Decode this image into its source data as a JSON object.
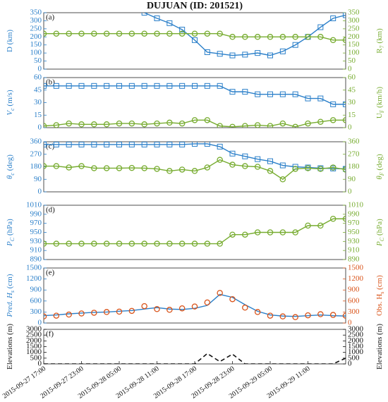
{
  "chart_data": [
    {
      "type": "line",
      "panel": "(a)",
      "ylabel": [
        "D (km)"
      ],
      "y2label": [
        "R",
        "7",
        " (km)"
      ],
      "ylim": [
        0,
        350
      ],
      "yticks": [
        0,
        50,
        100,
        150,
        200,
        250,
        300,
        350
      ],
      "y2lim": [
        0,
        350
      ],
      "y2ticks": [
        0,
        50,
        100,
        150,
        200,
        250,
        300,
        350
      ],
      "ycolor": "#2a7fc9",
      "y2color": "#77ac30",
      "series": [
        {
          "color": "#2a7fc9",
          "marker": "square",
          "line": true,
          "axis": "y",
          "values": [
            null,
            null,
            null,
            null,
            null,
            null,
            null,
            null,
            350,
            315,
            285,
            245,
            180,
            105,
            95,
            85,
            90,
            100,
            85,
            110,
            150,
            200,
            260,
            315,
            335
          ]
        },
        {
          "color": "#77ac30",
          "marker": "circle",
          "line": true,
          "axis": "y2",
          "values": [
            220,
            220,
            220,
            220,
            220,
            220,
            220,
            220,
            220,
            220,
            220,
            220,
            220,
            220,
            220,
            200,
            200,
            200,
            200,
            200,
            200,
            200,
            200,
            180,
            180
          ]
        }
      ]
    },
    {
      "type": "line",
      "panel": "(b)",
      "ylabel": [
        "V",
        "c",
        " (m/s)"
      ],
      "y2label": [
        "U",
        "F",
        " (km/h)"
      ],
      "ylim": [
        0,
        60
      ],
      "yticks": [
        0,
        15,
        30,
        45,
        60
      ],
      "y2lim": [
        0,
        60
      ],
      "y2ticks": [
        0,
        15,
        30,
        45,
        60
      ],
      "ycolor": "#2a7fc9",
      "y2color": "#77ac30",
      "series": [
        {
          "color": "#2a7fc9",
          "marker": "square",
          "line": true,
          "axis": "y",
          "values": [
            50,
            50,
            50,
            50,
            50,
            50,
            50,
            50,
            50,
            50,
            50,
            50,
            50,
            50,
            50,
            43,
            43,
            40,
            40,
            40,
            40,
            35,
            35,
            28,
            28
          ]
        },
        {
          "color": "#77ac30",
          "marker": "circle",
          "line": true,
          "axis": "y2",
          "values": [
            2,
            3,
            5,
            4,
            4,
            4,
            5,
            5,
            4,
            5,
            6,
            5,
            9,
            9,
            2,
            1,
            2,
            3,
            2,
            5,
            1,
            5,
            7,
            9,
            9
          ]
        }
      ]
    },
    {
      "type": "line",
      "panel": "(c)",
      "ylabel": [
        "θ",
        "c",
        " (deg)"
      ],
      "y2label": [
        "θ",
        "F",
        " (deg)"
      ],
      "ylim": [
        0,
        360
      ],
      "yticks": [
        0,
        90,
        180,
        270,
        360
      ],
      "y2lim": [
        0,
        360
      ],
      "y2ticks": [
        0,
        90,
        180,
        270,
        360
      ],
      "ycolor": "#2a7fc9",
      "y2color": "#77ac30",
      "series": [
        {
          "color": "#2a7fc9",
          "marker": "square",
          "line": true,
          "axis": "y",
          "values": [
            340,
            340,
            340,
            340,
            340,
            340,
            340,
            340,
            340,
            340,
            340,
            340,
            345,
            345,
            325,
            275,
            255,
            235,
            220,
            190,
            180,
            175,
            170,
            168,
            165
          ]
        },
        {
          "color": "#77ac30",
          "marker": "circle",
          "line": true,
          "axis": "y2",
          "values": [
            185,
            185,
            175,
            185,
            170,
            170,
            170,
            172,
            170,
            165,
            150,
            160,
            150,
            175,
            230,
            195,
            185,
            180,
            150,
            90,
            165,
            170,
            165,
            175,
            160
          ]
        }
      ]
    },
    {
      "type": "line",
      "panel": "(d)",
      "ylabel": [
        "P",
        "C",
        " (hPa)"
      ],
      "y2label": [
        "P",
        "C",
        " (hPa)"
      ],
      "ylim": [
        890,
        1010
      ],
      "yticks": [
        890,
        910,
        930,
        950,
        970,
        990,
        1010
      ],
      "y2lim": [
        890,
        1010
      ],
      "y2ticks": [
        890,
        910,
        930,
        950,
        970,
        990,
        1010
      ],
      "ycolor": "#2a7fc9",
      "y2color": "#77ac30",
      "series": [
        {
          "color": "#77ac30",
          "marker": "circle",
          "line": true,
          "axis": "y2",
          "values": [
            925,
            925,
            925,
            925,
            925,
            925,
            925,
            925,
            925,
            925,
            925,
            925,
            925,
            925,
            925,
            945,
            945,
            950,
            950,
            950,
            950,
            965,
            965,
            980,
            980
          ]
        }
      ]
    },
    {
      "type": "line",
      "panel": "(e)",
      "ylabel": [
        "Pred. H",
        "s",
        " (cm)"
      ],
      "y2label": [
        "Obs. H",
        "s",
        " (cm)"
      ],
      "ylim": [
        0,
        1500
      ],
      "yticks": [
        0,
        300,
        600,
        900,
        1200,
        1500
      ],
      "y2lim": [
        0,
        1500
      ],
      "y2ticks": [
        0,
        300,
        600,
        900,
        1200,
        1500
      ],
      "ycolor": "#2a7fc9",
      "y2color": "#d95319",
      "series": [
        {
          "color": "#2a7fc9",
          "marker": "none",
          "line": true,
          "axis": "y",
          "values": [
            200,
            220,
            250,
            270,
            290,
            300,
            320,
            340,
            380,
            420,
            380,
            370,
            400,
            480,
            780,
            700,
            500,
            320,
            220,
            190,
            180,
            200,
            220,
            200,
            190
          ]
        },
        {
          "color": "#d95319",
          "marker": "circle",
          "line": false,
          "axis": "y2",
          "values": [
            180,
            200,
            230,
            260,
            280,
            300,
            310,
            330,
            460,
            380,
            360,
            400,
            450,
            560,
            820,
            650,
            420,
            300,
            200,
            180,
            160,
            210,
            240,
            220,
            200
          ]
        }
      ]
    },
    {
      "type": "line",
      "panel": "(f)",
      "ylabel": [
        "Elevations (m)"
      ],
      "y2label": [
        "Elevations (m)"
      ],
      "ylim": [
        0,
        3000
      ],
      "yticks": [
        0,
        500,
        1000,
        1500,
        2000,
        2500,
        3000
      ],
      "y2lim": [
        0,
        3000
      ],
      "y2ticks": [
        0,
        500,
        1000,
        1500,
        2000,
        2500,
        3000
      ],
      "ycolor": "#111111",
      "y2color": "#111111",
      "x": [
        "2015-09-27 17:00",
        "2015-09-27 19:00",
        "2015-09-27 21:00",
        "2015-09-27 23:00",
        "2015-09-28 01:00",
        "2015-09-28 03:00",
        "2015-09-28 05:00",
        "2015-09-28 07:00",
        "2015-09-28 09:00",
        "2015-09-28 11:00",
        "2015-09-28 13:00",
        "2015-09-28 15:00",
        "2015-09-28 17:00",
        "2015-09-28 19:00",
        "2015-09-28 21:00",
        "2015-09-28 23:00",
        "2015-09-29 01:00",
        "2015-09-29 03:00",
        "2015-09-29 05:00",
        "2015-09-29 07:00",
        "2015-09-29 09:00",
        "2015-09-29 11:00",
        "2015-09-29 13:00",
        "2015-09-29 15:00",
        "2015-09-29 17:00"
      ],
      "xticks": [
        "2015-09-27 17:00",
        "2015-09-27 23:00",
        "2015-09-28 05:00",
        "2015-09-28 11:00",
        "2015-09-28 17:00",
        "2015-09-28 23:00",
        "2015-09-29 05:00",
        "2015-09-29 11:00"
      ],
      "series": [
        {
          "color": "#111111",
          "marker": "none",
          "line": true,
          "dash": true,
          "axis": "y",
          "values": [
            0,
            0,
            0,
            0,
            0,
            0,
            0,
            0,
            0,
            0,
            0,
            0,
            0,
            900,
            200,
            850,
            0,
            0,
            0,
            0,
            0,
            0,
            0,
            0,
            500
          ]
        }
      ]
    }
  ],
  "title": "DUJUAN (ID: 201521)"
}
